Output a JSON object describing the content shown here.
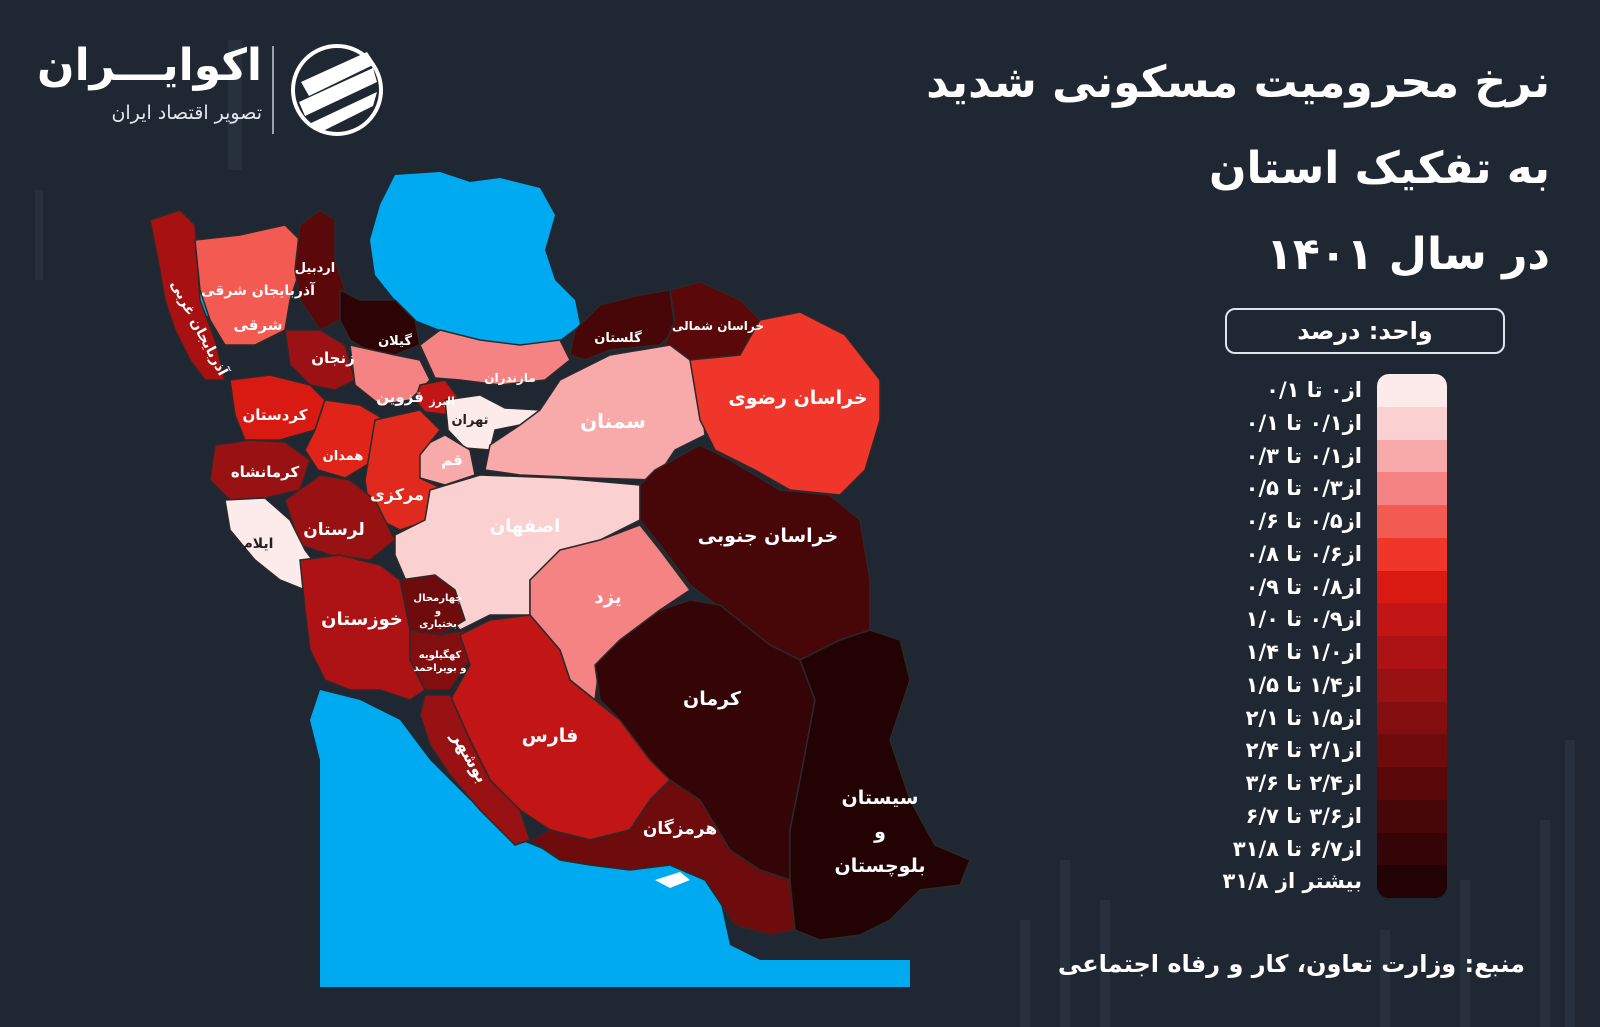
{
  "title": {
    "line1": "نرخ محرومیت مسکونی شدید به تفکیک استان",
    "line2": "در سال ۱۴۰۱"
  },
  "logo": {
    "name": "اکوایـــران",
    "tagline": "تصویر اقتصاد ایران",
    "icon": "ecoiran-swirl-logo"
  },
  "unit": "واحد: درصد",
  "legend": [
    {
      "label": "از۰ تا ۰/۱",
      "color": "#fdeaea"
    },
    {
      "label": "از۰/۱ تا ۰/۱",
      "color": "#fbd0d0"
    },
    {
      "label": "از۰/۱ تا ۰/۳",
      "color": "#f8a9a9"
    },
    {
      "label": "از۰/۳ تا ۰/۵",
      "color": "#f58383"
    },
    {
      "label": "از۰/۵ تا ۰/۶",
      "color": "#f35a52"
    },
    {
      "label": "از۰/۶ تا ۰/۸",
      "color": "#f0362b"
    },
    {
      "label": "از۰/۸ تا ۰/۹",
      "color": "#d91a12"
    },
    {
      "label": "از۰/۹ تا ۱/۰",
      "color": "#c21515"
    },
    {
      "label": "از۱/۰ تا ۱/۴",
      "color": "#ad1314"
    },
    {
      "label": "از۱/۴ تا ۱/۵",
      "color": "#981113"
    },
    {
      "label": "از۱/۵ تا ۲/۱",
      "color": "#830e10"
    },
    {
      "label": "از۲/۱ تا ۲/۴",
      "color": "#6e0b0d"
    },
    {
      "label": "از۲/۴ تا ۳/۶",
      "color": "#5a080a"
    },
    {
      "label": "از۳/۶ تا ۶/۷",
      "color": "#470608"
    },
    {
      "label": "از۶/۷ تا ۳۱/۸",
      "color": "#340406"
    },
    {
      "label": "بیشتر از ۳۱/۸",
      "color": "#220203"
    }
  ],
  "provinces": [
    {
      "name": "آذربایجان غربی",
      "color": "#a81112"
    },
    {
      "name": "آذربایجان شرقی",
      "color": "#f35a52"
    },
    {
      "name": "اردبیل",
      "color": "#5a080a"
    },
    {
      "name": "گیلان",
      "color": "#2e0305"
    },
    {
      "name": "زنجان",
      "color": "#9c1214"
    },
    {
      "name": "قزوین",
      "color": "#f58383"
    },
    {
      "name": "مازندران",
      "color": "#f58383"
    },
    {
      "name": "گلستان",
      "color": "#470608"
    },
    {
      "name": "خراسان شمالی",
      "color": "#5a080a"
    },
    {
      "name": "البرز",
      "color": "#c21515"
    },
    {
      "name": "تهران",
      "color": "#fdeaea"
    },
    {
      "name": "کردستان",
      "color": "#d91a12"
    },
    {
      "name": "همدان",
      "color": "#e0241a"
    },
    {
      "name": "قم",
      "color": "#f8a9a9"
    },
    {
      "name": "مرکزی",
      "color": "#e02a1e"
    },
    {
      "name": "سمنان",
      "color": "#f8a9a9"
    },
    {
      "name": "خراسان رضوی",
      "color": "#f0362b"
    },
    {
      "name": "کرمانشاه",
      "color": "#981113"
    },
    {
      "name": "لرستان",
      "color": "#981113"
    },
    {
      "name": "ایلام",
      "color": "#fdeaea"
    },
    {
      "name": "اصفهان",
      "color": "#fbd0d0"
    },
    {
      "name": "خراسان جنوبی",
      "color": "#470608"
    },
    {
      "name": "یزد",
      "color": "#f58383"
    },
    {
      "name": "خوزستان",
      "color": "#ad1314"
    },
    {
      "name": "چهارمحال و بختیاری",
      "color": "#6e0b0d"
    },
    {
      "name": "کهگیلویه و بویراحمد",
      "color": "#830e10"
    },
    {
      "name": "کرمان",
      "color": "#340406"
    },
    {
      "name": "فارس",
      "color": "#c21515"
    },
    {
      "name": "بوشهر",
      "color": "#981113"
    },
    {
      "name": "هرمزگان",
      "color": "#6e0b0d"
    },
    {
      "name": "سیستان و بلوچستان",
      "color": "#220203"
    }
  ],
  "water_color": "#00aaf0",
  "source": "منبع: وزارت تعاون، کار و رفاه اجتماعی"
}
